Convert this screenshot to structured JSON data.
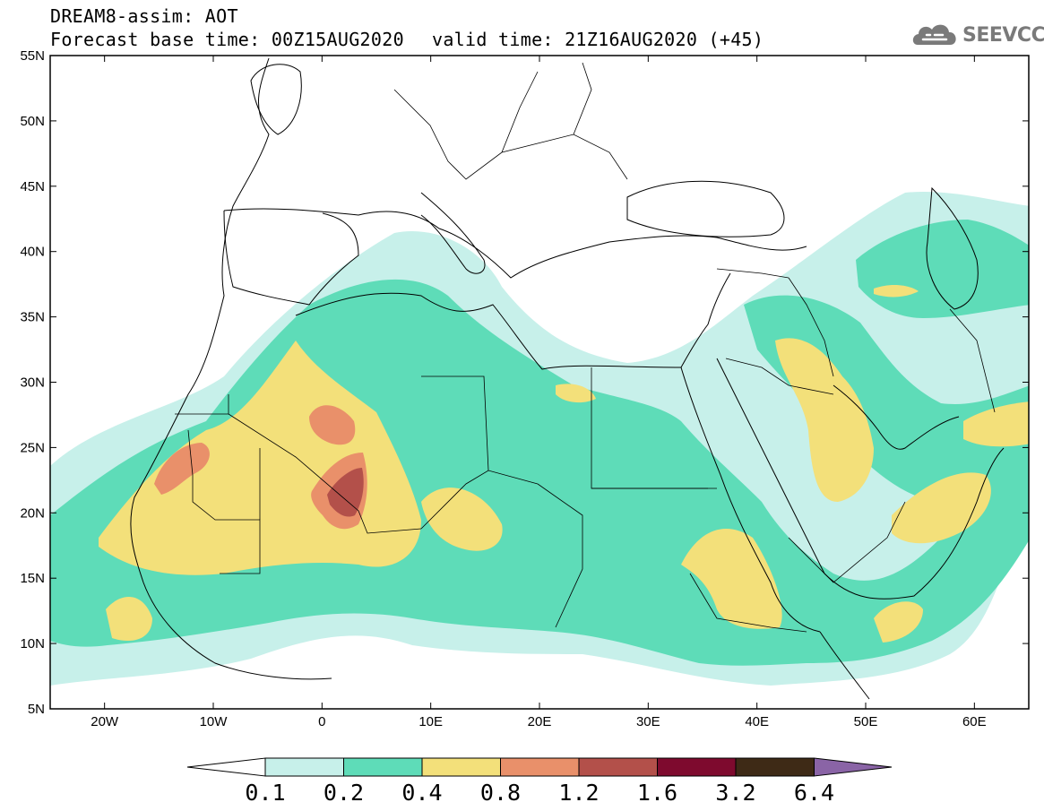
{
  "header": {
    "line1": "DREAM8-assim: AOT",
    "line2": "Forecast base time: 00Z15AUG2020",
    "line3": "valid time: 21Z16AUG2020 (+45)"
  },
  "logo": {
    "text": "SEEVCCC",
    "icon": "cloud-icon"
  },
  "map": {
    "lon_range": [
      -25,
      65
    ],
    "lat_range": [
      5,
      55
    ],
    "y_ticks": [
      "5N",
      "10N",
      "15N",
      "20N",
      "25N",
      "30N",
      "35N",
      "40N",
      "45N",
      "50N",
      "55N"
    ],
    "x_ticks": [
      "20W",
      "10W",
      "0",
      "10E",
      "20E",
      "30E",
      "40E",
      "50E",
      "60E"
    ]
  },
  "colorbar": {
    "labels": [
      "0.1",
      "0.2",
      "0.4",
      "0.8",
      "1.2",
      "1.6",
      "3.2",
      "6.4"
    ],
    "colors": {
      "c01": "#ffffff",
      "c02": "#c7f0ea",
      "c03": "#5edcb8",
      "c04": "#f3e07a",
      "c05": "#e9906a",
      "c06": "#b3504a",
      "c07": "#7e0a2e",
      "c08": "#3e2a16",
      "c09": "#8a64a6"
    }
  }
}
